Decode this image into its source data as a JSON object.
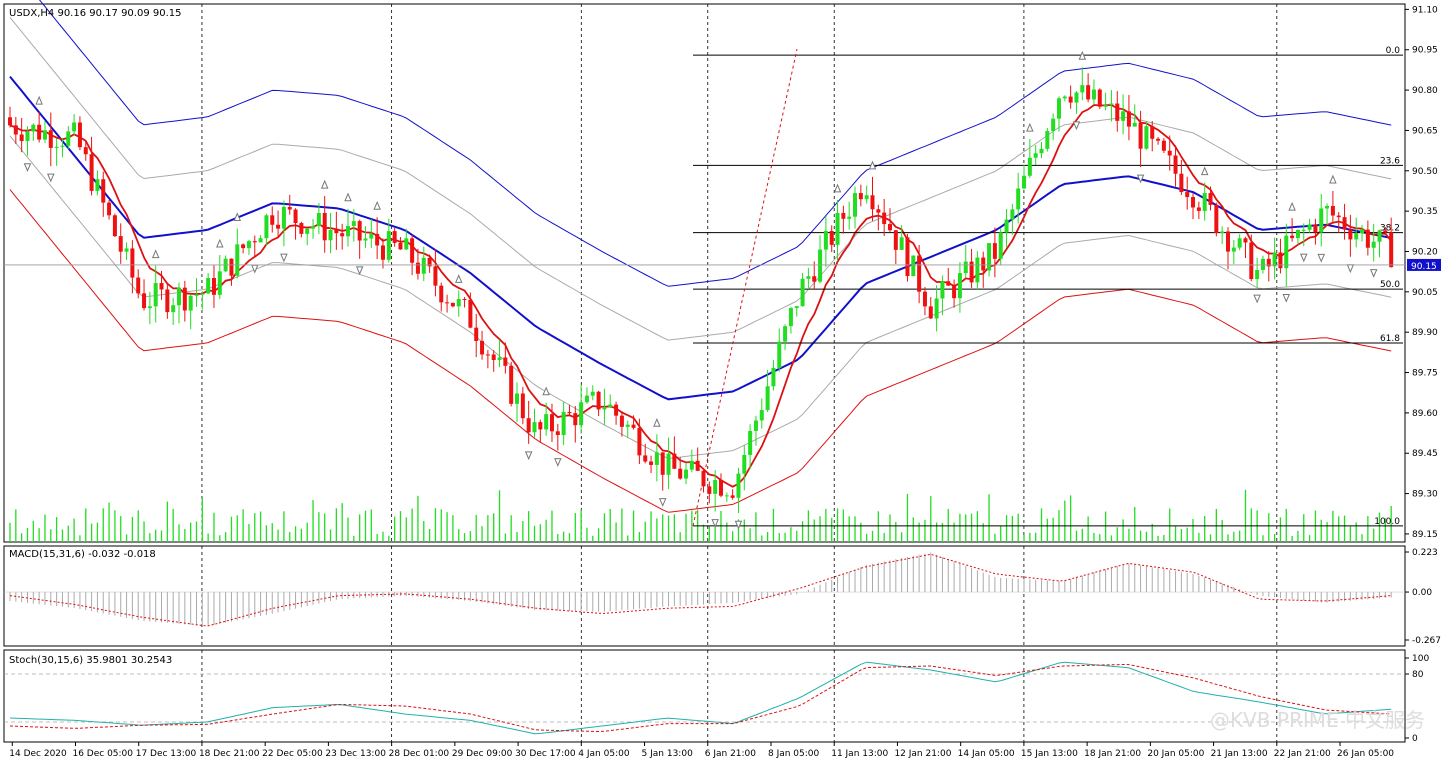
{
  "main_panel": {
    "header": "USDX,H4  90.16 90.17 90.09 90.15",
    "price_ticks": [
      "91.10",
      "90.95",
      "90.80",
      "90.65",
      "90.50",
      "90.35",
      "90.20",
      "90.05",
      "89.90",
      "89.75",
      "89.60",
      "89.45",
      "89.30",
      "89.15"
    ],
    "current_price_label": "90.15"
  },
  "macd_panel": {
    "header": "MACD(15,31,6) -0.032 -0.018",
    "ticks": [
      "0.223",
      "0.00",
      "-0.267"
    ]
  },
  "stoch_panel": {
    "header": "Stoch(30,15,6) 35.9801 30.2543",
    "ticks": [
      "100",
      "80",
      "0"
    ]
  },
  "time_axis": [
    "14 Dec 2020",
    "16 Dec 05:00",
    "17 Dec 13:00",
    "18 Dec 21:00",
    "22 Dec 05:00",
    "23 Dec 13:00",
    "28 Dec 01:00",
    "29 Dec 09:00",
    "30 Dec 17:00",
    "4 Jan 05:00",
    "5 Jan 13:00",
    "6 Jan 21:00",
    "8 Jan 05:00",
    "11 Jan 13:00",
    "12 Jan 21:00",
    "14 Jan 05:00",
    "15 Jan 13:00",
    "18 Jan 21:00",
    "20 Jan 05:00",
    "21 Jan 13:00",
    "22 Jan 21:00",
    "26 Jan 05:00"
  ],
  "fibonacci_levels": [
    {
      "label": "0.0",
      "price": 90.93
    },
    {
      "label": "23.6",
      "price": 90.52
    },
    {
      "label": "38.2",
      "price": 90.27
    },
    {
      "label": "50.0",
      "price": 90.06
    },
    {
      "label": "61.8",
      "price": 89.86
    },
    {
      "label": "100.0",
      "price": 89.18
    }
  ],
  "watermark": "@KVB PRIME 中文服务",
  "colors": {
    "bull_candle": "#22dd22",
    "bear_candle": "#ee1111",
    "volume": "#22dd22",
    "ema_fast": "#dd1111",
    "ema_slow": "#1111cc",
    "envelope_outer_upper": "#1111cc",
    "envelope_outer_lower": "#dd1111",
    "envelope_inner": "#aaaaaa",
    "macd_hist": "#aaaaaa",
    "macd_signal": "#dd1111",
    "stoch_main": "#20b2aa",
    "stoch_signal": "#dd1111",
    "current_price_bg": "#1111cc"
  },
  "chart_data": [
    {
      "type": "line",
      "title": "USDX,H4",
      "y_range": [
        89.12,
        91.12
      ],
      "x": [
        "14 Dec 2020",
        "16 Dec 05:00",
        "17 Dec 13:00",
        "18 Dec 21:00",
        "22 Dec 05:00",
        "23 Dec 13:00",
        "28 Dec 01:00",
        "29 Dec 09:00",
        "30 Dec 17:00",
        "4 Jan 05:00",
        "5 Jan 13:00",
        "6 Jan 21:00",
        "8 Jan 05:00",
        "11 Jan 13:00",
        "12 Jan 21:00",
        "14 Jan 05:00",
        "15 Jan 13:00",
        "18 Jan 21:00",
        "20 Jan 05:00",
        "21 Jan 13:00",
        "22 Jan 21:00",
        "26 Jan 05:00"
      ],
      "series": [
        {
          "values": [
            90.67,
            90.62,
            90.02,
            90.05,
            90.35,
            90.27,
            90.2,
            89.95,
            89.52,
            89.65,
            89.39,
            89.33,
            90.05,
            90.47,
            90.0,
            90.2,
            90.82,
            90.68,
            90.42,
            90.11,
            90.35,
            90.2
          ]
        },
        {
          "values": [
            90.85,
            90.55,
            90.25,
            90.28,
            90.38,
            90.36,
            90.28,
            90.12,
            89.92,
            89.78,
            89.65,
            89.68,
            89.8,
            90.08,
            90.18,
            90.28,
            90.45,
            90.48,
            90.42,
            90.28,
            90.3,
            90.25
          ]
        }
      ]
    },
    {
      "type": "bar",
      "title": "MACD(15,31,6)",
      "y_range": [
        -0.267,
        0.223
      ],
      "last_values": {
        "main": -0.032,
        "signal": -0.018
      },
      "series": [
        {
          "values": [
            -0.05,
            -0.09,
            -0.16,
            -0.19,
            -0.12,
            -0.04,
            -0.02,
            -0.05,
            -0.1,
            -0.11,
            -0.08,
            -0.06,
            -0.01,
            0.15,
            0.22,
            0.08,
            0.06,
            0.16,
            0.1,
            -0.02,
            -0.06,
            -0.03
          ]
        },
        {
          "values": [
            -0.02,
            -0.07,
            -0.14,
            -0.19,
            -0.09,
            -0.02,
            -0.01,
            -0.04,
            -0.09,
            -0.12,
            -0.09,
            -0.08,
            0.02,
            0.14,
            0.21,
            0.1,
            0.06,
            0.16,
            0.11,
            -0.04,
            -0.05,
            -0.02
          ]
        }
      ]
    },
    {
      "type": "line",
      "title": "Stoch(30,15,6)",
      "y_range": [
        0,
        100
      ],
      "last_values": {
        "main": 35.9801,
        "signal": 30.2543
      },
      "series": [
        {
          "values": [
            25,
            22,
            16,
            20,
            38,
            42,
            30,
            22,
            5,
            15,
            25,
            18,
            50,
            95,
            85,
            70,
            95,
            88,
            58,
            45,
            30,
            36
          ]
        },
        {
          "values": [
            15,
            12,
            16,
            17,
            30,
            42,
            40,
            30,
            10,
            8,
            18,
            18,
            40,
            88,
            90,
            78,
            90,
            92,
            75,
            52,
            35,
            30
          ]
        }
      ]
    }
  ]
}
